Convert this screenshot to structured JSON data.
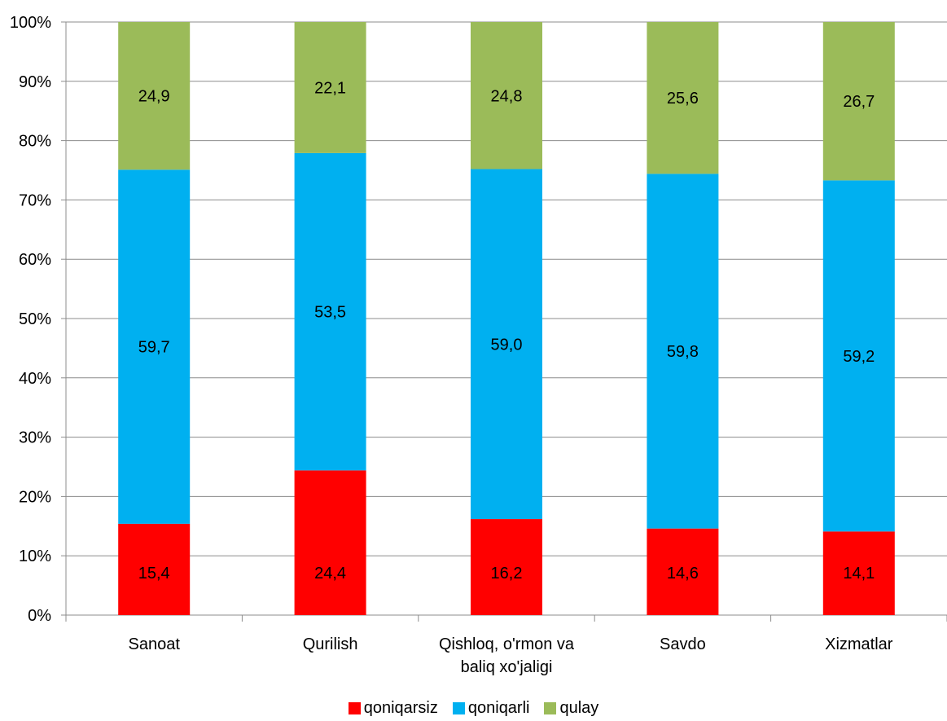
{
  "chart_data": {
    "type": "bar",
    "stacked": true,
    "percent_stacked": true,
    "categories": [
      "Sanoat",
      "Qurilish",
      "Qishloq, o'rmon va\nbaliq xo'jaligi",
      "Savdo",
      "Xizmatlar"
    ],
    "series": [
      {
        "name": "qoniqarsiz",
        "color": "#ff0000",
        "values": [
          15.4,
          24.4,
          16.2,
          14.6,
          14.1
        ],
        "labels": [
          "15,4",
          "24,4",
          "16,2",
          "14,6",
          "14,1"
        ]
      },
      {
        "name": "qoniqarli",
        "color": "#00b0f0",
        "values": [
          59.7,
          53.5,
          59.0,
          59.8,
          59.2
        ],
        "labels": [
          "59,7",
          "53,5",
          "59,0",
          "59,8",
          "59,2"
        ]
      },
      {
        "name": "qulay",
        "color": "#9bbb59",
        "values": [
          24.9,
          22.1,
          24.8,
          25.6,
          26.7
        ],
        "labels": [
          "24,9",
          "22,1",
          "24,8",
          "25,6",
          "26,7"
        ]
      }
    ],
    "y_ticks": [
      "0%",
      "10%",
      "20%",
      "30%",
      "40%",
      "50%",
      "60%",
      "70%",
      "80%",
      "90%",
      "100%"
    ],
    "ylim": [
      0,
      100
    ],
    "grid": true,
    "legend_position": "bottom"
  }
}
